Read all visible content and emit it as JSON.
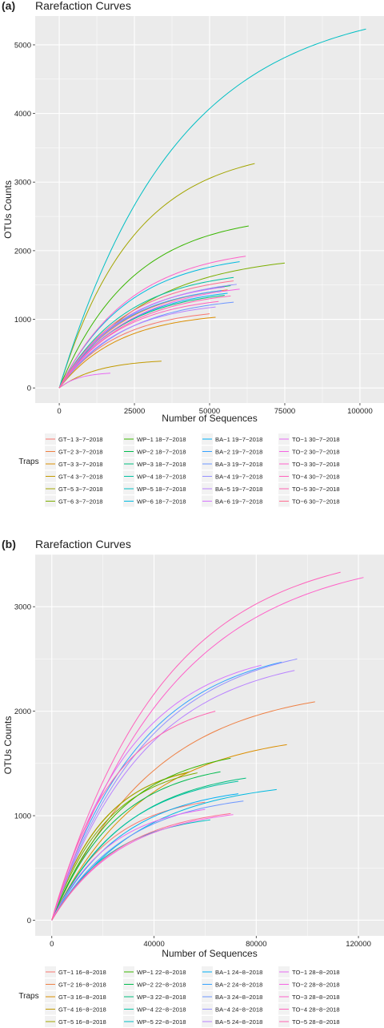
{
  "chart_data": [
    {
      "panel_label": "(a)",
      "type": "line",
      "title": "Rarefaction Curves",
      "xlabel": "Number of Sequences",
      "ylabel": "OTUs Counts",
      "xlim": [
        -8000,
        108000
      ],
      "ylim": [
        -220,
        5420
      ],
      "x_ticks": [
        0,
        25000,
        50000,
        75000,
        100000
      ],
      "y_ticks": [
        0,
        1000,
        2000,
        3000,
        4000,
        5000
      ],
      "grid": true,
      "legend_title": "Traps",
      "legend_position": "bottom",
      "series": [
        {
          "name": "GT−1 3−7−2018",
          "color": "#F8766D",
          "xmax": 50000,
          "ymax": 1080
        },
        {
          "name": "GT−2 3−7−2018",
          "color": "#EE8044",
          "xmax": 56000,
          "ymax": 1430
        },
        {
          "name": "GT−3 3−7−2018",
          "color": "#DB8E00",
          "xmax": 52000,
          "ymax": 1030
        },
        {
          "name": "GT−4 3−7−2018",
          "color": "#C29A00",
          "xmax": 34000,
          "ymax": 390
        },
        {
          "name": "GT−5 3−7−2018",
          "color": "#A3A500",
          "xmax": 65000,
          "ymax": 3270
        },
        {
          "name": "GT−6 3−7−2018",
          "color": "#7CAE00",
          "xmax": 75000,
          "ymax": 1820
        },
        {
          "name": "WP−1 18−7−2018",
          "color": "#39B600",
          "xmax": 63000,
          "ymax": 2360
        },
        {
          "name": "WP−2 18−7−2018",
          "color": "#00BB4E",
          "xmax": 57000,
          "ymax": 1490
        },
        {
          "name": "WP−3 18−7−2018",
          "color": "#00BF7D",
          "xmax": 55000,
          "ymax": 1350
        },
        {
          "name": "WP−4 18−7−2018",
          "color": "#00C1A3",
          "xmax": 58000,
          "ymax": 1610
        },
        {
          "name": "WP−5 18−7−2018",
          "color": "#00BFC4",
          "xmax": 102000,
          "ymax": 5230
        },
        {
          "name": "WP−6 18−7−2018",
          "color": "#00BAE0",
          "xmax": 60000,
          "ymax": 1840
        },
        {
          "name": "BA−1 19−7−2018",
          "color": "#00B0F6",
          "xmax": 56000,
          "ymax": 1380
        },
        {
          "name": "BA−2 19−7−2018",
          "color": "#35A2FF",
          "xmax": 54000,
          "ymax": 1420
        },
        {
          "name": "BA−3 19−7−2018",
          "color": "#6C96FF",
          "xmax": 58000,
          "ymax": 1250
        },
        {
          "name": "BA−4 19−7−2018",
          "color": "#9590FF",
          "xmax": 59000,
          "ymax": 1510
        },
        {
          "name": "BA−5 19−7−2018",
          "color": "#B983FF",
          "xmax": 52000,
          "ymax": 1180
        },
        {
          "name": "BA−6 19−7−2018",
          "color": "#D575FE",
          "xmax": 55000,
          "ymax": 1470
        },
        {
          "name": "TO−1 30−7−2018",
          "color": "#E76BF3",
          "xmax": 17000,
          "ymax": 215
        },
        {
          "name": "TO−2 30−7−2018",
          "color": "#F564E3",
          "xmax": 60000,
          "ymax": 1440
        },
        {
          "name": "TO−3 30−7−2018",
          "color": "#FF61C9",
          "xmax": 62000,
          "ymax": 1920
        },
        {
          "name": "TO−4 30−7−2018",
          "color": "#FF62BC",
          "xmax": 53000,
          "ymax": 1260
        },
        {
          "name": "TO−5 30−7−2018",
          "color": "#FF64B0",
          "xmax": 57000,
          "ymax": 1340
        },
        {
          "name": "TO−6 30−7−2018",
          "color": "#FF6C91",
          "xmax": 58000,
          "ymax": 1560
        }
      ]
    },
    {
      "panel_label": "(b)",
      "type": "line",
      "title": "Rarefaction Curves",
      "xlabel": "Number of Sequences",
      "ylabel": "OTUs Counts",
      "xlim": [
        -6500,
        130000
      ],
      "ylim": [
        -150,
        3500
      ],
      "x_ticks": [
        0,
        40000,
        80000,
        120000
      ],
      "y_ticks": [
        0,
        1000,
        2000,
        3000
      ],
      "grid": true,
      "legend_title": "Traps",
      "legend_position": "bottom",
      "series": [
        {
          "name": "GT−1 16−8−2018",
          "color": "#F8766D",
          "xmax": 60000,
          "ymax": 1130
        },
        {
          "name": "GT−2 16−8−2018",
          "color": "#EE8044",
          "xmax": 103000,
          "ymax": 2090
        },
        {
          "name": "GT−3 16−8−2018",
          "color": "#DB8E00",
          "xmax": 92000,
          "ymax": 1680
        },
        {
          "name": "GT−4 16−8−2018",
          "color": "#C29A00",
          "xmax": 53000,
          "ymax": 1410
        },
        {
          "name": "GT−5 16−8−2018",
          "color": "#A3A500",
          "xmax": 54000,
          "ymax": 1420
        },
        {
          "name": "GT−6 16−8−2018",
          "color": "#7CAE00",
          "xmax": 57000,
          "ymax": 1410
        },
        {
          "name": "WP−1 22−8−2018",
          "color": "#39B600",
          "xmax": 70000,
          "ymax": 1550
        },
        {
          "name": "WP−2 22−8−2018",
          "color": "#00BB4E",
          "xmax": 66000,
          "ymax": 1420
        },
        {
          "name": "WP−3 22−8−2018",
          "color": "#00BF7D",
          "xmax": 76000,
          "ymax": 1360
        },
        {
          "name": "WP−4 22−8−2018",
          "color": "#00C1A3",
          "xmax": 73000,
          "ymax": 1330
        },
        {
          "name": "WP−5 22−8−2018",
          "color": "#00BFC4",
          "xmax": 62000,
          "ymax": 960
        },
        {
          "name": "WP−6 22−8−2018",
          "color": "#00BAE0",
          "xmax": 88000,
          "ymax": 1250
        },
        {
          "name": "BA−1 24−8−2018",
          "color": "#00B0F6",
          "xmax": 73000,
          "ymax": 1210
        },
        {
          "name": "BA−2 24−8−2018",
          "color": "#35A2FF",
          "xmax": 90000,
          "ymax": 2470
        },
        {
          "name": "BA−3 24−8−2018",
          "color": "#6C96FF",
          "xmax": 75000,
          "ymax": 1140
        },
        {
          "name": "BA−4 24−8−2018",
          "color": "#9590FF",
          "xmax": 96000,
          "ymax": 2500
        },
        {
          "name": "BA−5 24−8−2018",
          "color": "#B983FF",
          "xmax": 95000,
          "ymax": 2390
        },
        {
          "name": "BA−6 24−8−2018",
          "color": "#D575FE",
          "xmax": 82000,
          "ymax": 2440
        },
        {
          "name": "TO−1 28−8−2018",
          "color": "#E76BF3",
          "xmax": 60000,
          "ymax": 1060
        },
        {
          "name": "TO−2 28−8−2018",
          "color": "#F564E3",
          "xmax": 71000,
          "ymax": 1010
        },
        {
          "name": "TO−3 28−8−2018",
          "color": "#FF61C9",
          "xmax": 122000,
          "ymax": 3280
        },
        {
          "name": "TO−4 28−8−2018",
          "color": "#FF62BC",
          "xmax": 113000,
          "ymax": 3330
        },
        {
          "name": "TO−5 28−8−2018",
          "color": "#FF64B0",
          "xmax": 64000,
          "ymax": 2000
        },
        {
          "name": "TO−6 28−8−2018",
          "color": "#FF6C91",
          "xmax": 70000,
          "ymax": 1020
        }
      ]
    }
  ]
}
